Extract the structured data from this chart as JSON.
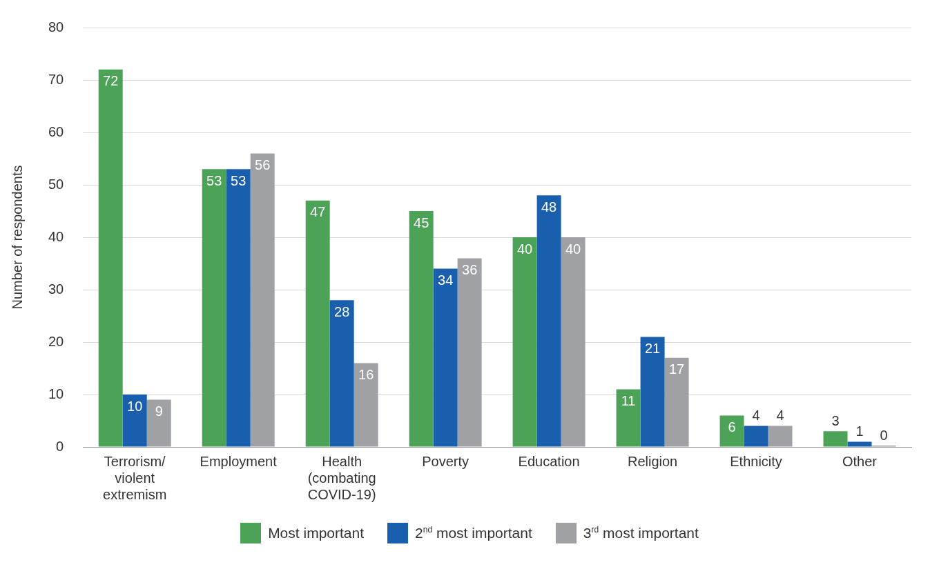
{
  "chart_data": {
    "type": "bar",
    "ylabel": "Number of respondents",
    "categories": [
      "Terrorism/\nviolent\nextremism",
      "Employment",
      "Health\n(combating\nCOVID-19)",
      "Poverty",
      "Education",
      "Religion",
      "Ethnicity",
      "Other"
    ],
    "series": [
      {
        "name": "Most important",
        "color": "#4ca257",
        "values": [
          72,
          53,
          47,
          45,
          40,
          11,
          6,
          3
        ]
      },
      {
        "name": "2$^{nd}$ most important",
        "color": "#195fad",
        "values": [
          10,
          53,
          28,
          34,
          48,
          21,
          4,
          1
        ]
      },
      {
        "name": "3$^{rd}$ most important",
        "color": "#a0a1a5",
        "values": [
          9,
          56,
          16,
          36,
          40,
          17,
          4,
          0
        ]
      }
    ],
    "ylim": [
      0,
      80
    ],
    "yticks": [
      0,
      10,
      20,
      30,
      40,
      50,
      60,
      70,
      80
    ],
    "grid": "y",
    "legend": "bottom",
    "data_labels": true
  }
}
